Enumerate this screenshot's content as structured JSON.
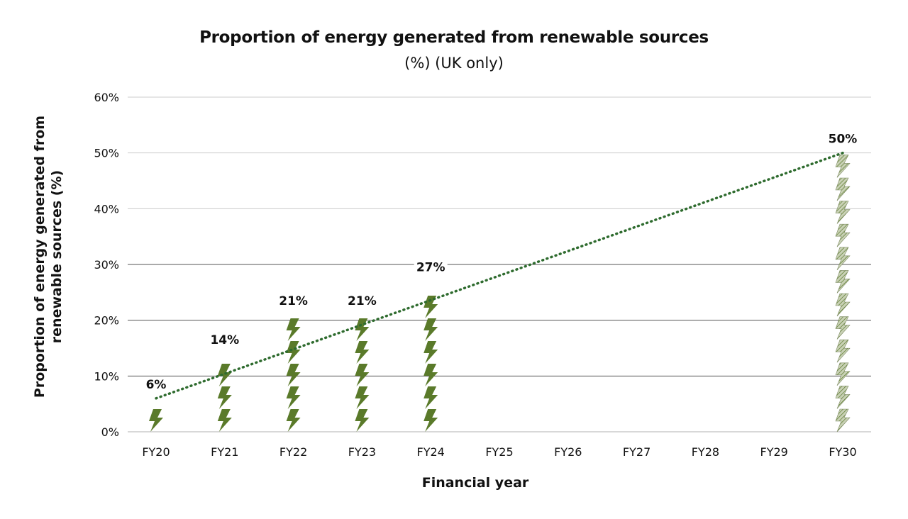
{
  "chart_data": {
    "type": "bar",
    "title": "Proportion of energy generated from renewable sources",
    "subtitle": "(%) (UK only)",
    "xlabel": "Financial year",
    "ylabel": "Proportion of energy generated from renewable sources (%)",
    "categories": [
      "FY20",
      "FY21",
      "FY22",
      "FY23",
      "FY24",
      "FY25",
      "FY26",
      "FY27",
      "FY28",
      "FY29",
      "FY30"
    ],
    "values": [
      6,
      14,
      21,
      21,
      27,
      null,
      null,
      null,
      null,
      null,
      50
    ],
    "value_labels": [
      "6%",
      "14%",
      "21%",
      "21%",
      "27%",
      "",
      "",
      "",
      "",
      "",
      "50%"
    ],
    "target_category": "FY30",
    "trendline": {
      "from": {
        "x": "FY20",
        "y": 6
      },
      "to": {
        "x": "FY30",
        "y": 50
      },
      "style": "dotted"
    },
    "ylim": [
      0,
      60
    ],
    "yticks": [
      0,
      10,
      20,
      30,
      40,
      50,
      60
    ],
    "ytick_labels": [
      "0%",
      "10%",
      "20%",
      "30%",
      "40%",
      "50%",
      "60%"
    ],
    "grid": true,
    "colors": {
      "actual": "#5a7a2a",
      "target": "#a9b68f",
      "trend": "#2e6b2e",
      "grid": "#cccccc",
      "grid_dark": "#555555"
    }
  }
}
